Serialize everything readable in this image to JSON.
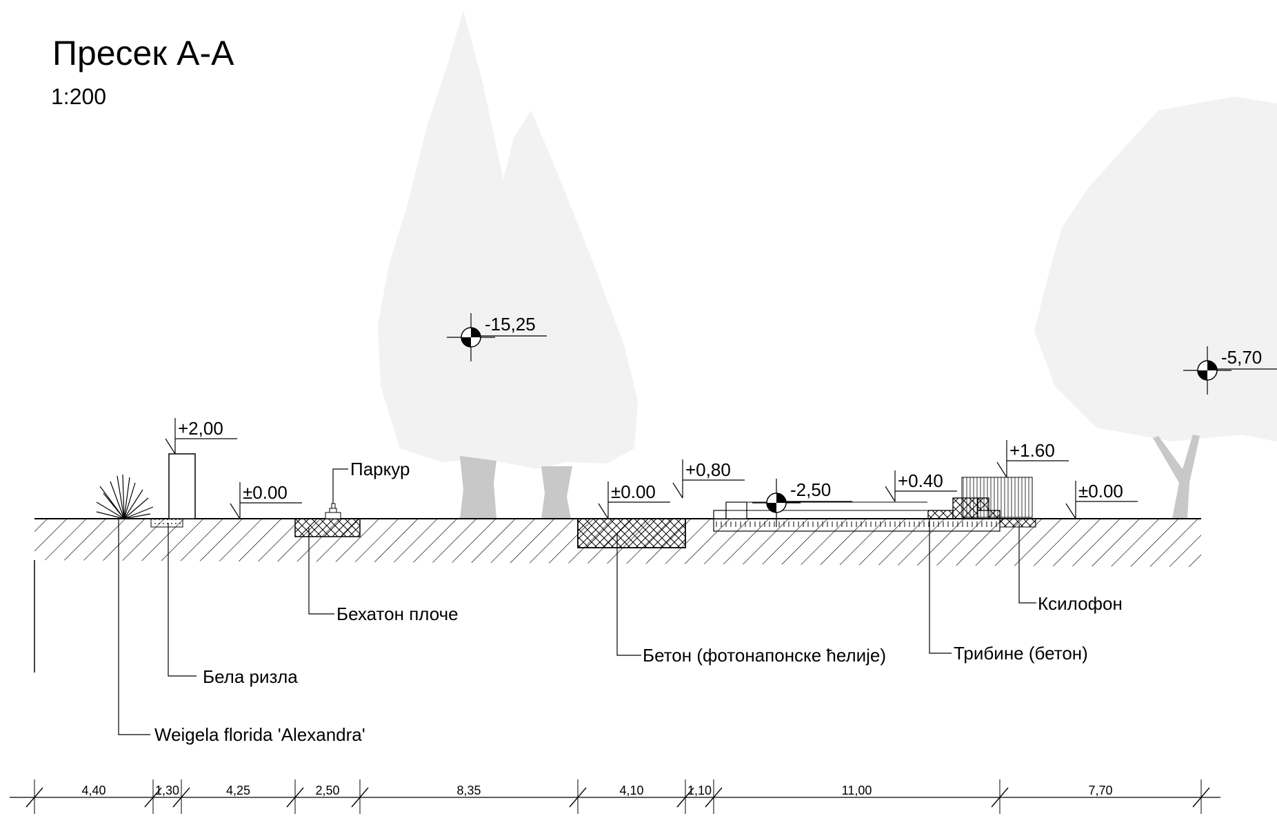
{
  "title": "Пресек А-А",
  "scale": "1:200",
  "elevations": [
    "+2,00",
    "±0.00",
    "±0.00",
    "+0,80",
    "+0.40",
    "+1.60",
    "±0.00"
  ],
  "tree_heights": [
    "-15,25",
    "-2,50",
    "-5,70"
  ],
  "labels": {
    "parkour": "Паркур",
    "hexagon_tiles": "Бехатон плоче",
    "white_gravel": "Бела ризла",
    "plant": "Weigela florida 'Alexandra'",
    "concrete_pv": "Бетон (фотонапонске ћелије)",
    "bleachers": "Трибине (бетон)",
    "xylophone": "Ксилофон"
  },
  "dimensions": [
    "4,40",
    "1,30",
    "4,25",
    "2,50",
    "8,35",
    "4,10",
    "1,10",
    "11,00",
    "7,70"
  ],
  "colors": {
    "tree_silhouette": "#f2f2f2",
    "trunk": "#c8c8c8",
    "line": "#000000"
  }
}
